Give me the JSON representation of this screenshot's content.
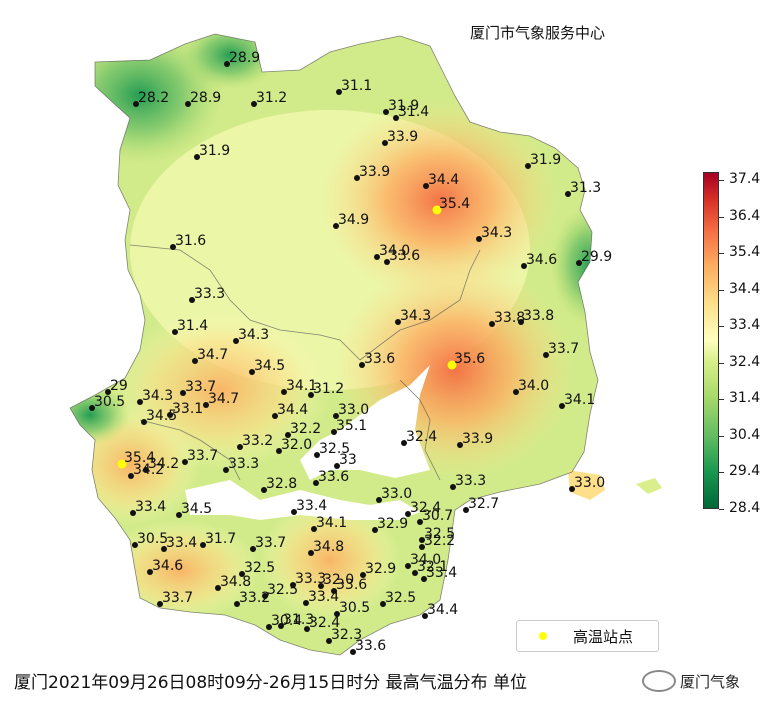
{
  "center_name": "厦门市气象服务中心",
  "caption": "厦门2021年09月26日08时09分-26月15日时分  最高气温分布  单位",
  "watermark": "厦门气象",
  "legend": {
    "label": "高温站点",
    "color": "#ffff00"
  },
  "colorbar": {
    "ticks": [
      "28.4",
      "29.4",
      "30.4",
      "31.4",
      "32.4",
      "33.4",
      "34.4",
      "35.4",
      "36.4",
      "37.4"
    ],
    "colors": [
      "#006837",
      "#1a9850",
      "#66bd63",
      "#a6d96a",
      "#d9ef8b",
      "#ffffbf",
      "#fee08b",
      "#fdae61",
      "#f46d43",
      "#d73027",
      "#a50026"
    ]
  },
  "stations": [
    {
      "v": "28.9"
    },
    {
      "v": "28.2"
    },
    {
      "v": "28.9"
    },
    {
      "v": "31.2"
    },
    {
      "v": "31.1"
    },
    {
      "v": "31.9"
    },
    {
      "v": "31.4"
    },
    {
      "v": "33.9"
    },
    {
      "v": "31.9"
    },
    {
      "v": "33.9"
    },
    {
      "v": "34.4"
    },
    {
      "v": "35.4",
      "hot": true
    },
    {
      "v": "31.9"
    },
    {
      "v": "31.3"
    },
    {
      "v": "34.9"
    },
    {
      "v": "31.6"
    },
    {
      "v": "34.3"
    },
    {
      "v": "34.0"
    },
    {
      "v": "33.6"
    },
    {
      "v": "34.6"
    },
    {
      "v": "29.9"
    },
    {
      "v": "33.3"
    },
    {
      "v": "31.4"
    },
    {
      "v": "34.3"
    },
    {
      "v": "34.3"
    },
    {
      "v": "33.8"
    },
    {
      "v": "33.8"
    },
    {
      "v": "34.7"
    },
    {
      "v": "34.5"
    },
    {
      "v": "33.6"
    },
    {
      "v": "35.6",
      "hot": true
    },
    {
      "v": "33.7"
    },
    {
      "v": "29"
    },
    {
      "v": "30.5"
    },
    {
      "v": "34.3"
    },
    {
      "v": "33.7"
    },
    {
      "v": "34.7"
    },
    {
      "v": "34.1"
    },
    {
      "v": "31.2"
    },
    {
      "v": "34.0"
    },
    {
      "v": "34.5"
    },
    {
      "v": "33.1"
    },
    {
      "v": "34.4"
    },
    {
      "v": "33.0"
    },
    {
      "v": "34.1"
    },
    {
      "v": "32.2"
    },
    {
      "v": "35.1"
    },
    {
      "v": "32.4"
    },
    {
      "v": "33.9"
    },
    {
      "v": "33.2"
    },
    {
      "v": "33.7"
    },
    {
      "v": "32.0"
    },
    {
      "v": "32.5"
    },
    {
      "v": "35.4",
      "hot": true
    },
    {
      "v": "33"
    },
    {
      "v": "34.2"
    },
    {
      "v": "33.3"
    },
    {
      "v": "34.2"
    },
    {
      "v": "33.6"
    },
    {
      "v": "33.3"
    },
    {
      "v": "32.7"
    },
    {
      "v": "32.8"
    },
    {
      "v": "33.0"
    },
    {
      "v": "33.0"
    },
    {
      "v": "33.4"
    },
    {
      "v": "34.5"
    },
    {
      "v": "33.4"
    },
    {
      "v": "32.4"
    },
    {
      "v": "30.7"
    },
    {
      "v": "34.1"
    },
    {
      "v": "32.9"
    },
    {
      "v": "32.5"
    },
    {
      "v": "30.5"
    },
    {
      "v": "33.4"
    },
    {
      "v": "31.7"
    },
    {
      "v": "33.7"
    },
    {
      "v": "34.8"
    },
    {
      "v": "32.2"
    },
    {
      "v": "34.6"
    },
    {
      "v": "32.5"
    },
    {
      "v": "33.3"
    },
    {
      "v": "32.0"
    },
    {
      "v": "34.0"
    },
    {
      "v": "32.9"
    },
    {
      "v": "34.8"
    },
    {
      "v": "33.6"
    },
    {
      "v": "32.1"
    },
    {
      "v": "33.4"
    },
    {
      "v": "33.7"
    },
    {
      "v": "32.5"
    },
    {
      "v": "33.2"
    },
    {
      "v": "33.4"
    },
    {
      "v": "30.5"
    },
    {
      "v": "32.5"
    },
    {
      "v": "34.4"
    },
    {
      "v": "30.4"
    },
    {
      "v": "31.3"
    },
    {
      "v": "32.4"
    },
    {
      "v": "32.3"
    },
    {
      "v": "33.6"
    }
  ]
}
